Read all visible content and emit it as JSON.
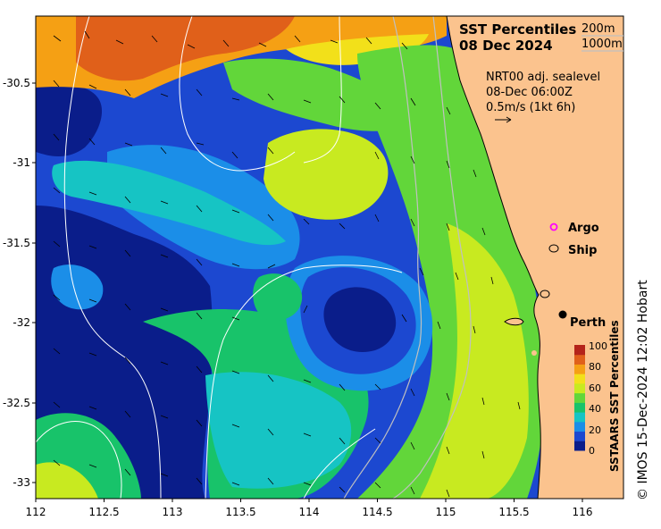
{
  "title": {
    "line1": "SST Percentiles",
    "line2": "08 Dec 2024"
  },
  "contours": {
    "c200": "200m",
    "c1000": "1000m"
  },
  "current_note": {
    "line1": "NRT00 adj. sealevel",
    "line2": "08-Dec 06:00Z",
    "line3": "0.5m/s (1kt 6h)"
  },
  "legend": {
    "argo": "Argo",
    "ship": "Ship"
  },
  "place": {
    "perth": "Perth"
  },
  "colorbar": {
    "title": "SSTAARS SST Percentiles",
    "ticks": [
      "100",
      "80",
      "60",
      "40",
      "20",
      "0"
    ],
    "colors": [
      "#0a1d8a",
      "#1c48d0",
      "#1b8ee8",
      "#16c4c4",
      "#18c36a",
      "#62d63a",
      "#c8ea20",
      "#f2e01a",
      "#f5a014",
      "#e0601a",
      "#b4241a"
    ]
  },
  "axes": {
    "x_ticks": [
      "112",
      "112.5",
      "113",
      "113.5",
      "114",
      "114.5",
      "115",
      "115.5",
      "116"
    ],
    "y_ticks": [
      "-30.5",
      "-31",
      "-31.5",
      "-32",
      "-32.5",
      "-33"
    ]
  },
  "colors": {
    "land": "#fbc38e",
    "sea_deep": "#0a1d8a"
  },
  "credit": "© IMOS 15-Dec-2024 12:02 Hobart"
}
